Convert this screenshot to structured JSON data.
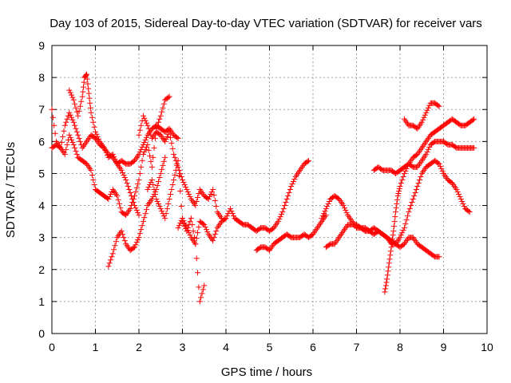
{
  "chart_data": {
    "type": "scatter",
    "title": "Day 103 of 2015, Sidereal Day-to-day VTEC variation (SDTVAR) for receiver vars",
    "xlabel": "GPS time / hours",
    "ylabel": "SDTVAR / TECUs",
    "xlim": [
      0,
      10
    ],
    "ylim": [
      0,
      9
    ],
    "xticks": [
      0,
      1,
      2,
      3,
      4,
      5,
      6,
      7,
      8,
      9,
      10
    ],
    "yticks": [
      0,
      1,
      2,
      3,
      4,
      5,
      6,
      7,
      8,
      9
    ],
    "grid": true,
    "marker": "+",
    "color": "#ff0000",
    "series": [
      {
        "name": "track-1",
        "x": [
          0.0,
          0.1,
          0.2,
          0.3,
          0.4,
          0.5,
          0.6,
          0.7,
          0.8,
          0.9,
          1.0,
          1.1,
          1.2,
          1.3,
          1.4,
          1.5,
          1.6,
          1.7,
          1.8,
          1.9,
          2.0,
          2.1,
          2.2,
          2.3,
          2.4,
          2.5,
          2.6,
          2.7,
          2.8,
          2.9
        ],
        "y": [
          7.0,
          6.0,
          5.8,
          6.5,
          6.9,
          6.6,
          6.2,
          5.8,
          6.0,
          6.2,
          6.1,
          5.9,
          5.8,
          5.6,
          5.5,
          5.3,
          5.4,
          5.3,
          5.3,
          5.4,
          5.6,
          5.9,
          6.2,
          6.4,
          6.5,
          6.4,
          6.3,
          6.4,
          6.2,
          6.1
        ]
      },
      {
        "name": "track-2",
        "x": [
          0.4,
          0.5,
          0.6,
          0.7,
          0.75,
          0.8,
          0.85,
          0.9,
          1.0,
          1.1,
          1.2,
          1.3,
          1.4,
          1.5,
          1.6,
          1.7,
          1.8,
          1.9,
          2.0
        ],
        "y": [
          7.6,
          7.3,
          6.8,
          7.4,
          8.0,
          8.1,
          7.5,
          6.9,
          6.3,
          6.0,
          5.8,
          5.5,
          5.6,
          5.3,
          5.1,
          4.8,
          4.4,
          4.0,
          3.7
        ]
      },
      {
        "name": "track-3",
        "x": [
          0.0,
          0.1,
          0.2,
          0.3,
          0.4,
          0.5,
          0.6,
          0.7,
          0.8,
          0.9,
          1.0,
          1.1,
          1.2,
          1.3,
          1.4,
          1.5,
          1.6,
          1.7,
          1.8,
          1.9,
          2.0,
          2.1,
          2.2,
          2.3,
          2.4,
          2.5,
          2.6,
          2.7
        ],
        "y": [
          5.8,
          5.9,
          5.8,
          5.6,
          6.2,
          5.9,
          5.5,
          5.4,
          5.3,
          5.1,
          4.5,
          4.4,
          4.3,
          4.2,
          4.5,
          4.3,
          3.8,
          3.7,
          3.9,
          4.3,
          4.8,
          5.6,
          5.9,
          5.2,
          6.4,
          6.8,
          7.3,
          7.4
        ]
      },
      {
        "name": "track-4",
        "x": [
          1.3,
          1.4,
          1.5,
          1.6,
          1.7,
          1.8,
          1.9,
          2.0,
          2.1,
          2.2,
          2.3,
          2.4,
          2.5,
          2.6
        ],
        "y": [
          2.1,
          2.5,
          3.0,
          3.2,
          2.8,
          2.6,
          2.7,
          3.0,
          3.5,
          4.0,
          4.2,
          4.5,
          5.0,
          5.5
        ]
      },
      {
        "name": "track-5",
        "x": [
          2.0,
          2.1,
          2.2,
          2.3,
          2.4,
          2.5,
          2.6,
          2.7,
          2.8,
          2.9,
          3.0,
          3.1,
          3.2,
          3.3,
          3.4,
          3.5,
          3.6,
          3.7,
          3.8,
          3.9
        ],
        "y": [
          6.2,
          6.8,
          6.5,
          6.1,
          6.3,
          6.2,
          6.0,
          6.3,
          5.6,
          5.2,
          4.8,
          4.5,
          4.2,
          4.0,
          4.5,
          4.3,
          4.2,
          4.5,
          3.8,
          3.6
        ]
      },
      {
        "name": "track-6",
        "x": [
          2.2,
          2.3,
          2.4,
          2.5,
          2.6,
          2.7,
          2.8,
          2.9,
          3.0,
          3.1,
          3.2,
          3.3,
          3.4,
          3.5
        ],
        "y": [
          4.5,
          4.8,
          4.2,
          3.9,
          3.6,
          4.2,
          4.8,
          5.4,
          3.5,
          3.2,
          3.6,
          2.8,
          1.0,
          1.5
        ]
      },
      {
        "name": "track-7",
        "x": [
          2.9,
          3.0,
          3.1,
          3.2,
          3.3,
          3.4,
          3.5,
          3.6,
          3.7,
          3.8,
          3.9,
          4.0,
          4.1,
          4.2,
          4.3,
          4.4,
          4.5,
          4.6,
          4.7,
          4.8,
          4.9,
          5.0,
          5.1,
          5.2,
          5.3,
          5.4,
          5.5,
          5.6,
          5.7,
          5.8,
          5.9
        ],
        "y": [
          3.3,
          3.6,
          3.3,
          3.0,
          2.8,
          3.5,
          3.4,
          3.1,
          2.9,
          3.3,
          3.5,
          3.6,
          3.9,
          3.6,
          3.5,
          3.4,
          3.4,
          3.3,
          3.2,
          3.3,
          3.3,
          3.2,
          3.3,
          3.5,
          3.8,
          4.2,
          4.6,
          4.9,
          5.1,
          5.3,
          5.4
        ]
      },
      {
        "name": "track-8",
        "x": [
          4.7,
          4.8,
          4.9,
          5.0,
          5.1,
          5.2,
          5.3,
          5.4,
          5.5,
          5.6,
          5.7,
          5.8,
          5.9,
          6.0,
          6.1,
          6.2,
          6.3
        ],
        "y": [
          2.6,
          2.7,
          2.7,
          2.6,
          2.8,
          2.9,
          3.0,
          3.1,
          3.0,
          3.0,
          3.0,
          3.1,
          3.0,
          3.1,
          3.3,
          3.5,
          3.7
        ]
      },
      {
        "name": "track-9",
        "x": [
          6.2,
          6.3,
          6.4,
          6.5,
          6.6,
          6.7,
          6.8,
          6.9,
          7.0,
          7.1,
          7.2,
          7.3,
          7.4,
          7.5,
          7.6,
          7.7,
          7.8,
          7.9,
          8.0,
          8.1,
          8.2,
          8.3,
          8.4,
          8.5,
          8.6,
          8.7,
          8.8,
          8.9
        ],
        "y": [
          3.6,
          3.9,
          4.2,
          4.3,
          4.2,
          4.0,
          3.7,
          3.5,
          3.3,
          3.3,
          3.2,
          3.2,
          3.3,
          3.2,
          3.1,
          3.0,
          2.9,
          2.8,
          2.7,
          2.8,
          3.0,
          3.0,
          2.8,
          2.7,
          2.6,
          2.5,
          2.4,
          2.4
        ]
      },
      {
        "name": "track-10",
        "x": [
          6.3,
          6.4,
          6.5,
          6.6,
          6.7,
          6.8,
          6.9,
          7.0,
          7.1,
          7.2,
          7.3,
          7.4,
          7.5,
          7.6,
          7.7,
          7.8,
          7.9,
          8.0,
          8.1,
          8.2,
          8.3,
          8.4,
          8.5,
          8.6,
          8.7,
          8.8,
          8.9,
          9.0,
          9.1,
          9.2,
          9.3,
          9.4,
          9.5,
          9.6
        ],
        "y": [
          2.7,
          2.8,
          2.8,
          3.0,
          3.2,
          3.4,
          3.4,
          3.4,
          3.3,
          3.3,
          3.2,
          3.1,
          3.2,
          3.1,
          3.0,
          2.8,
          2.8,
          3.0,
          3.3,
          3.8,
          4.2,
          4.6,
          5.0,
          5.2,
          5.3,
          5.4,
          5.3,
          5.0,
          4.8,
          4.7,
          4.5,
          4.2,
          3.9,
          3.8
        ]
      },
      {
        "name": "track-11",
        "x": [
          7.4,
          7.5,
          7.6,
          7.7,
          7.8,
          7.9,
          8.0,
          8.1,
          8.2,
          8.3,
          8.4,
          8.5,
          8.6,
          8.7,
          8.8,
          8.9,
          9.0,
          9.1,
          9.2,
          9.3,
          9.4,
          9.5,
          9.6,
          9.7
        ],
        "y": [
          5.1,
          5.2,
          5.1,
          5.1,
          5.1,
          5.0,
          5.1,
          5.2,
          5.3,
          5.2,
          5.2,
          5.4,
          5.6,
          5.9,
          6.0,
          6.0,
          6.0,
          5.9,
          5.9,
          5.8,
          5.8,
          5.8,
          5.8,
          5.8
        ]
      },
      {
        "name": "track-12",
        "x": [
          7.65,
          7.7,
          7.75,
          7.8,
          7.85,
          7.9,
          7.95,
          8.0,
          8.1,
          8.2,
          8.3,
          8.4,
          8.5,
          8.6,
          8.7,
          8.8,
          8.9,
          9.0,
          9.1,
          9.2,
          9.3,
          9.4,
          9.5,
          9.6,
          9.7
        ],
        "y": [
          1.3,
          1.7,
          2.2,
          2.7,
          3.2,
          3.8,
          4.3,
          4.6,
          5.0,
          5.3,
          5.5,
          5.6,
          5.8,
          6.0,
          6.2,
          6.3,
          6.4,
          6.5,
          6.6,
          6.7,
          6.6,
          6.5,
          6.5,
          6.6,
          6.7
        ]
      },
      {
        "name": "track-13",
        "x": [
          8.1,
          8.2,
          8.3,
          8.4,
          8.5,
          8.6,
          8.7,
          8.8,
          8.9
        ],
        "y": [
          6.7,
          6.5,
          6.5,
          6.4,
          6.6,
          6.9,
          7.2,
          7.2,
          7.1
        ]
      }
    ]
  }
}
